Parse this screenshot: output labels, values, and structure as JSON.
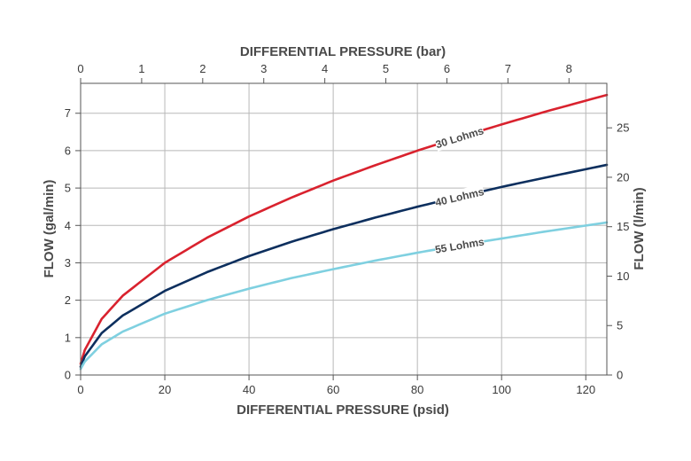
{
  "chart_data": {
    "type": "line",
    "title": "",
    "xlabel": "DIFFERENTIAL PRESSURE (psid)",
    "ylabel": "FLOW (gal/min)",
    "x2label": "DIFFERENTIAL PRESSURE (bar)",
    "y2label": "FLOW (l/min)",
    "xlim": [
      0,
      125
    ],
    "ylim": [
      0,
      7.8
    ],
    "x2lim": [
      0,
      8.62
    ],
    "y2lim": [
      0,
      29.5
    ],
    "x_ticks": [
      "0",
      "20",
      "40",
      "60",
      "80",
      "100",
      "120"
    ],
    "y_ticks": [
      "0",
      "1",
      "2",
      "3",
      "4",
      "5",
      "6",
      "7"
    ],
    "x2_ticks": [
      "0",
      "1",
      "2",
      "3",
      "4",
      "5",
      "6",
      "7",
      "8"
    ],
    "y2_ticks": [
      "0",
      "5",
      "10",
      "15",
      "20",
      "25"
    ],
    "grid": true,
    "legend": "none",
    "series": [
      {
        "name": "30 Lohms",
        "color": "#d9222e",
        "x": [
          0,
          1,
          5,
          10,
          20,
          30,
          40,
          50,
          60,
          70,
          80,
          90,
          100,
          110,
          125
        ],
        "y": [
          0.3,
          0.67,
          1.5,
          2.12,
          3.0,
          3.67,
          4.24,
          4.74,
          5.2,
          5.61,
          6.0,
          6.36,
          6.7,
          7.03,
          7.49
        ]
      },
      {
        "name": "40 Lohms",
        "color": "#0d2f5e",
        "x": [
          0,
          1,
          5,
          10,
          20,
          30,
          40,
          50,
          60,
          70,
          80,
          90,
          100,
          110,
          125
        ],
        "y": [
          0.22,
          0.5,
          1.12,
          1.59,
          2.25,
          2.75,
          3.18,
          3.56,
          3.9,
          4.21,
          4.5,
          4.77,
          5.03,
          5.27,
          5.62
        ]
      },
      {
        "name": "55 Lohms",
        "color": "#7fd0e0",
        "x": [
          0,
          1,
          5,
          10,
          20,
          30,
          40,
          50,
          60,
          70,
          80,
          90,
          100,
          110,
          125
        ],
        "y": [
          0.16,
          0.36,
          0.82,
          1.16,
          1.64,
          2.0,
          2.31,
          2.59,
          2.83,
          3.06,
          3.27,
          3.47,
          3.65,
          3.83,
          4.08
        ]
      }
    ],
    "annotations": [
      {
        "series": "30 Lohms",
        "text": "30 Lohms",
        "at_x": 90
      },
      {
        "series": "40 Lohms",
        "text": "40 Lohms",
        "at_x": 90
      },
      {
        "series": "55 Lohms",
        "text": "55 Lohms",
        "at_x": 90
      }
    ]
  }
}
